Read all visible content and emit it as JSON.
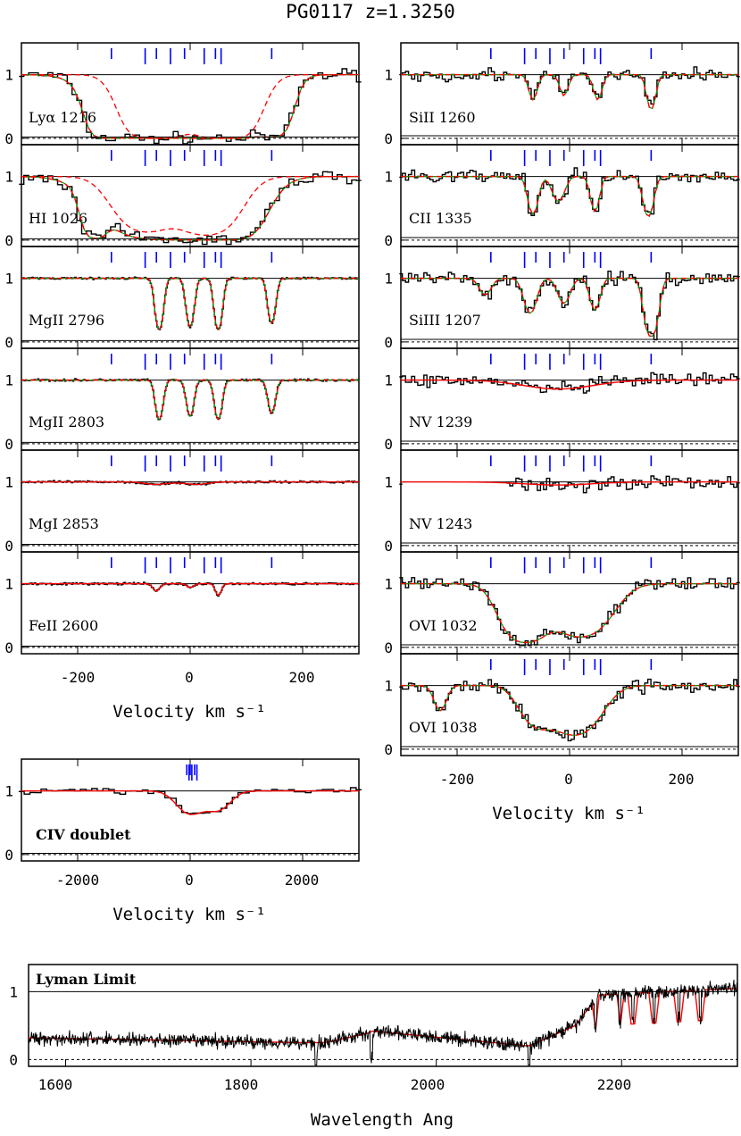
{
  "title": "PG0117   z=1.3250",
  "colors": {
    "data": "#000000",
    "model": "#ff0000",
    "components": "#00a000",
    "components_dashed": "#ff0000",
    "ticks": "#0000ff",
    "axis": "#000000"
  },
  "chart_data": [
    {
      "type": "line",
      "group": "left-velocity",
      "xlabel": "Velocity km s⁻¹",
      "xlim": [
        -300,
        300
      ],
      "xticks": [
        -200,
        0,
        200
      ],
      "ylim": [
        -0.1,
        1.5
      ],
      "yticks": [
        0,
        1
      ],
      "component_velocities": [
        -140,
        -80,
        -60,
        -35,
        -10,
        25,
        45,
        55,
        145
      ],
      "panels": [
        {
          "label": "Lyα 1216",
          "profile": "lya"
        },
        {
          "label": "HI 1026",
          "profile": "hi1026"
        },
        {
          "label": "MgII 2796",
          "profile": "mg2796"
        },
        {
          "label": "MgII 2803",
          "profile": "mg2803"
        },
        {
          "label": "MgI 2853",
          "profile": "mgi"
        },
        {
          "label": "FeII 2600",
          "profile": "feii"
        }
      ]
    },
    {
      "type": "line",
      "group": "right-velocity",
      "xlabel": "Velocity km s⁻¹",
      "xlim": [
        -300,
        300
      ],
      "xticks": [
        -200,
        0,
        200
      ],
      "ylim": [
        -0.1,
        1.5
      ],
      "yticks": [
        0,
        1
      ],
      "panels": [
        {
          "label": "SiII 1260",
          "profile": "siii1260"
        },
        {
          "label": "CII 1335",
          "profile": "cii"
        },
        {
          "label": "SiIII 1207",
          "profile": "siiii"
        },
        {
          "label": "NV 1239",
          "profile": "nv1239"
        },
        {
          "label": "NV 1243",
          "profile": "nv1243"
        },
        {
          "label": "OVI 1032",
          "profile": "ovi1032"
        },
        {
          "label": "OVI 1038",
          "profile": "ovi1038"
        }
      ]
    },
    {
      "type": "line",
      "group": "civ",
      "label": "CIV doublet",
      "xlabel": "Velocity km s⁻¹",
      "xlim": [
        -3000,
        3000
      ],
      "xticks": [
        -2000,
        0,
        2000
      ],
      "ylim": [
        -0.1,
        1.5
      ],
      "yticks": [
        0,
        1
      ]
    },
    {
      "type": "line",
      "group": "lyman-limit",
      "label": "Lyman Limit",
      "xlabel": "Wavelength Ang",
      "xlim": [
        1560,
        2325
      ],
      "xticks": [
        1600,
        1800,
        2000,
        2200
      ],
      "ylim": [
        -0.1,
        1.4
      ],
      "yticks": [
        0,
        1
      ]
    }
  ]
}
